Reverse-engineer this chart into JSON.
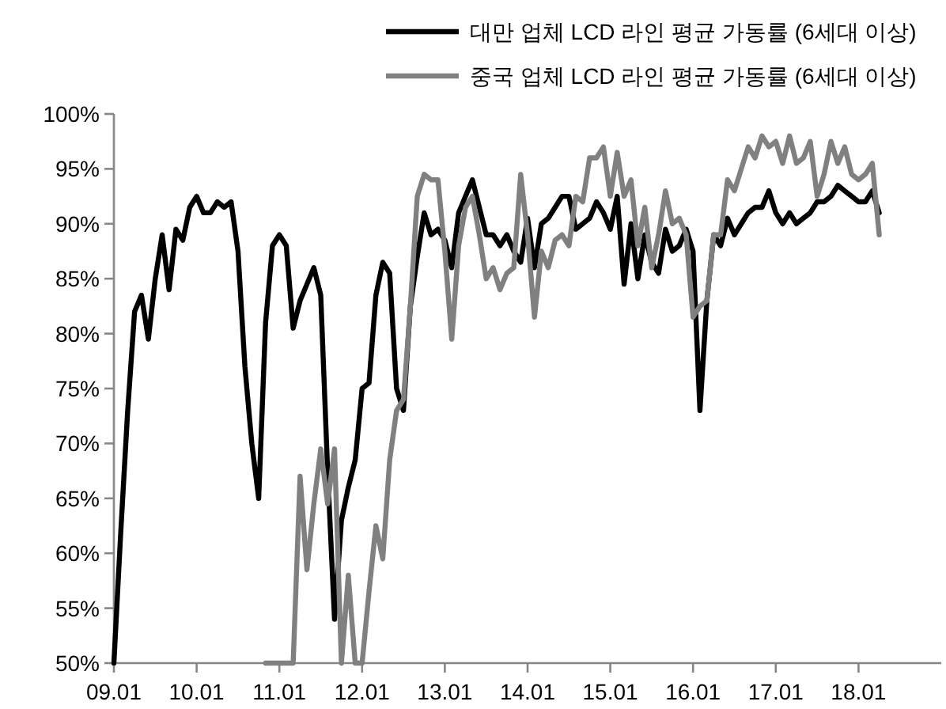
{
  "chart_data": {
    "type": "line",
    "legend": "top",
    "grid": false,
    "marker": "none",
    "line_style": "solid",
    "categories": [
      "09.01",
      null,
      null,
      null,
      null,
      null,
      null,
      null,
      null,
      null,
      null,
      null,
      "10.01",
      null,
      null,
      null,
      null,
      null,
      null,
      null,
      null,
      null,
      null,
      null,
      "11.01",
      null,
      null,
      null,
      null,
      null,
      null,
      null,
      null,
      null,
      null,
      null,
      "12.01",
      null,
      null,
      null,
      null,
      null,
      null,
      null,
      null,
      null,
      null,
      null,
      "13.01",
      null,
      null,
      null,
      null,
      null,
      null,
      null,
      null,
      null,
      null,
      null,
      "14.01",
      null,
      null,
      null,
      null,
      null,
      null,
      null,
      null,
      null,
      null,
      null,
      "15.01",
      null,
      null,
      null,
      null,
      null,
      null,
      null,
      null,
      null,
      null,
      null,
      "16.01",
      null,
      null,
      null,
      null,
      null,
      null,
      null,
      null,
      null,
      null,
      null,
      "17.01",
      null,
      null,
      null,
      null,
      null,
      null,
      null,
      null,
      null,
      null,
      null,
      "18.01",
      null,
      null,
      null,
      null,
      null,
      null,
      null,
      null,
      null,
      null,
      null
    ],
    "ylim": [
      50,
      100
    ],
    "yticks": [
      {
        "value": 50,
        "label": "50%"
      },
      {
        "value": 55,
        "label": "55%"
      },
      {
        "value": 60,
        "label": "60%"
      },
      {
        "value": 65,
        "label": "65%"
      },
      {
        "value": 70,
        "label": "70%"
      },
      {
        "value": 75,
        "label": "75%"
      },
      {
        "value": 80,
        "label": "80%"
      },
      {
        "value": 85,
        "label": "85%"
      },
      {
        "value": 90,
        "label": "90%"
      },
      {
        "value": 95,
        "label": "95%"
      },
      {
        "value": 100,
        "label": "100%"
      }
    ],
    "series": [
      {
        "name": "대만 업체 LCD 라인 평균 가동률 (6세대 이상)",
        "color": "#000000",
        "values": [
          50,
          62,
          73,
          82,
          83.5,
          79.5,
          85,
          89,
          84,
          89.5,
          88.5,
          91.5,
          92.5,
          91,
          91,
          92,
          91.5,
          92,
          87.5,
          77,
          70,
          65,
          81,
          88,
          89,
          88,
          80.5,
          83,
          84.5,
          86,
          83.5,
          67.5,
          54,
          63,
          66,
          68.5,
          75,
          75.5,
          83.5,
          86.5,
          85.5,
          75,
          73,
          82.5,
          87,
          91,
          89,
          89.5,
          88.5,
          86,
          91,
          92.5,
          94,
          91.5,
          89,
          89,
          88,
          89,
          87.5,
          86.5,
          90.5,
          86,
          90,
          90.5,
          91.5,
          92.5,
          92.5,
          89.5,
          90,
          90.5,
          92,
          91,
          89.5,
          92.5,
          84.5,
          90,
          85,
          89,
          86.5,
          85.5,
          89.5,
          87.5,
          88,
          89.5,
          87.5,
          73,
          83,
          89,
          88,
          90.5,
          89,
          90,
          91,
          91.5,
          91.5,
          93,
          91,
          90,
          91,
          90,
          90.5,
          91,
          92,
          92,
          92.5,
          93.5,
          93,
          92.5,
          92,
          92,
          93,
          91,
          null,
          null,
          null,
          null,
          null,
          null,
          null,
          null
        ]
      },
      {
        "name": "중국 업체 LCD 라인 평균 가동률 (6세대 이상)",
        "color": "#808080",
        "values": [
          null,
          null,
          null,
          null,
          null,
          null,
          null,
          null,
          null,
          null,
          null,
          null,
          null,
          null,
          null,
          null,
          null,
          null,
          null,
          null,
          null,
          null,
          50,
          50,
          50,
          50,
          50,
          67,
          58.5,
          64.5,
          69.5,
          64.5,
          69.5,
          50,
          58,
          50,
          50,
          56.5,
          62.5,
          59.5,
          68.5,
          73,
          74,
          82.5,
          92.5,
          94.5,
          94,
          94,
          87.5,
          79.5,
          88,
          91.5,
          92.5,
          89,
          85,
          86,
          84,
          85.5,
          86,
          94.5,
          89,
          81.5,
          87.5,
          86,
          88.5,
          89,
          88,
          92.5,
          92,
          96,
          96,
          97,
          92.5,
          96.5,
          92.5,
          94,
          88,
          91.5,
          86,
          89,
          93,
          90,
          90.5,
          89,
          81.5,
          82.5,
          83,
          89,
          89,
          94,
          93,
          95,
          97,
          96,
          98,
          97,
          97.5,
          95.5,
          98,
          95.5,
          96,
          97.5,
          92.5,
          94.5,
          97.5,
          95.5,
          97,
          94.5,
          94,
          94.5,
          95.5,
          89,
          null,
          null,
          null,
          null,
          null,
          null,
          null,
          null
        ]
      }
    ]
  }
}
